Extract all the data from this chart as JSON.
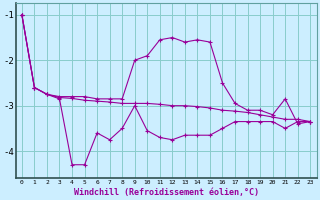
{
  "xlabel": "Windchill (Refroidissement éolien,°C)",
  "x": [
    0,
    1,
    2,
    3,
    4,
    5,
    6,
    7,
    8,
    9,
    10,
    11,
    12,
    13,
    14,
    15,
    16,
    17,
    18,
    19,
    20,
    21,
    22,
    23
  ],
  "line1": [
    -1.0,
    -2.6,
    -2.75,
    -2.8,
    -2.8,
    -2.8,
    -2.85,
    -2.85,
    -2.85,
    -2.0,
    -1.9,
    -1.55,
    -1.5,
    -1.6,
    -1.55,
    -1.6,
    -2.5,
    -2.95,
    -3.1,
    -3.1,
    -3.2,
    -2.85,
    -3.4,
    -3.35
  ],
  "line2": [
    -1.0,
    -2.6,
    -2.75,
    -2.82,
    -2.84,
    -2.88,
    -2.9,
    -2.92,
    -2.95,
    -2.95,
    -2.95,
    -2.97,
    -3.0,
    -3.0,
    -3.02,
    -3.05,
    -3.1,
    -3.12,
    -3.15,
    -3.2,
    -3.25,
    -3.3,
    -3.3,
    -3.35
  ],
  "line3": [
    -1.0,
    -2.6,
    -2.75,
    -2.85,
    -4.3,
    -4.3,
    -3.6,
    -3.75,
    -3.5,
    -3.0,
    -3.55,
    -3.7,
    -3.75,
    -3.65,
    -3.65,
    -3.65,
    -3.5,
    -3.35,
    -3.35,
    -3.35,
    -3.35,
    -3.5,
    -3.35,
    -3.35
  ],
  "line_color": "#990099",
  "bg_color": "#cceeff",
  "grid_color": "#88cccc",
  "ylim": [
    -4.6,
    -0.75
  ],
  "yticks": [
    -4,
    -3,
    -2,
    -1
  ],
  "xlim": [
    -0.5,
    23.5
  ]
}
